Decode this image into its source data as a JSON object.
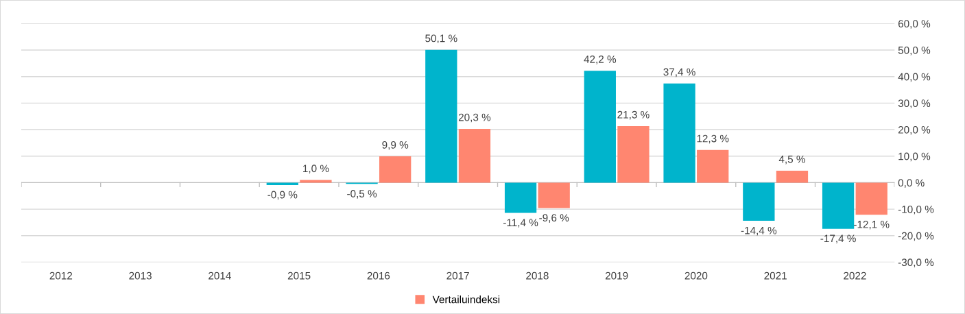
{
  "chart_data": {
    "type": "bar",
    "categories": [
      "2012",
      "2013",
      "2014",
      "2015",
      "2016",
      "2017",
      "2018",
      "2019",
      "2020",
      "2021",
      "2022"
    ],
    "series": [
      {
        "color": "#00b4cc",
        "values": [
          null,
          null,
          null,
          -0.9,
          -0.5,
          50.1,
          -11.4,
          42.2,
          37.4,
          -14.4,
          -17.4
        ],
        "value_labels": [
          null,
          null,
          null,
          "-0,9 %",
          "-0,5 %",
          "50,1 %",
          "-11,4 %",
          "42,2 %",
          "37,4 %",
          "-14,4 %",
          "-17,4 %"
        ]
      },
      {
        "name": "Vertailuindeksi",
        "color": "#ff8670",
        "values": [
          null,
          null,
          null,
          1.0,
          9.9,
          20.3,
          -9.6,
          21.3,
          12.3,
          4.5,
          -12.1
        ],
        "value_labels": [
          null,
          null,
          null,
          "1,0 %",
          "9,9 %",
          "20,3 %",
          "-9,6 %",
          "21,3 %",
          "12,3 %",
          "4,5 %",
          "-12,1 %"
        ]
      }
    ],
    "ylim": [
      -30,
      60
    ],
    "yticks": [
      {
        "value": -30,
        "label": "-30,0 %"
      },
      {
        "value": -20,
        "label": "-20,0 %"
      },
      {
        "value": -10,
        "label": "-10,0 %"
      },
      {
        "value": 0,
        "label": "0,0 %"
      },
      {
        "value": 10,
        "label": "10,0 %"
      },
      {
        "value": 20,
        "label": "20,0 %"
      },
      {
        "value": 30,
        "label": "30,0 %"
      },
      {
        "value": 40,
        "label": "40,0 %"
      },
      {
        "value": 50,
        "label": "50,0 %"
      },
      {
        "value": 60,
        "label": "60,0 %"
      }
    ],
    "grid": "y",
    "legend": "bottom"
  }
}
